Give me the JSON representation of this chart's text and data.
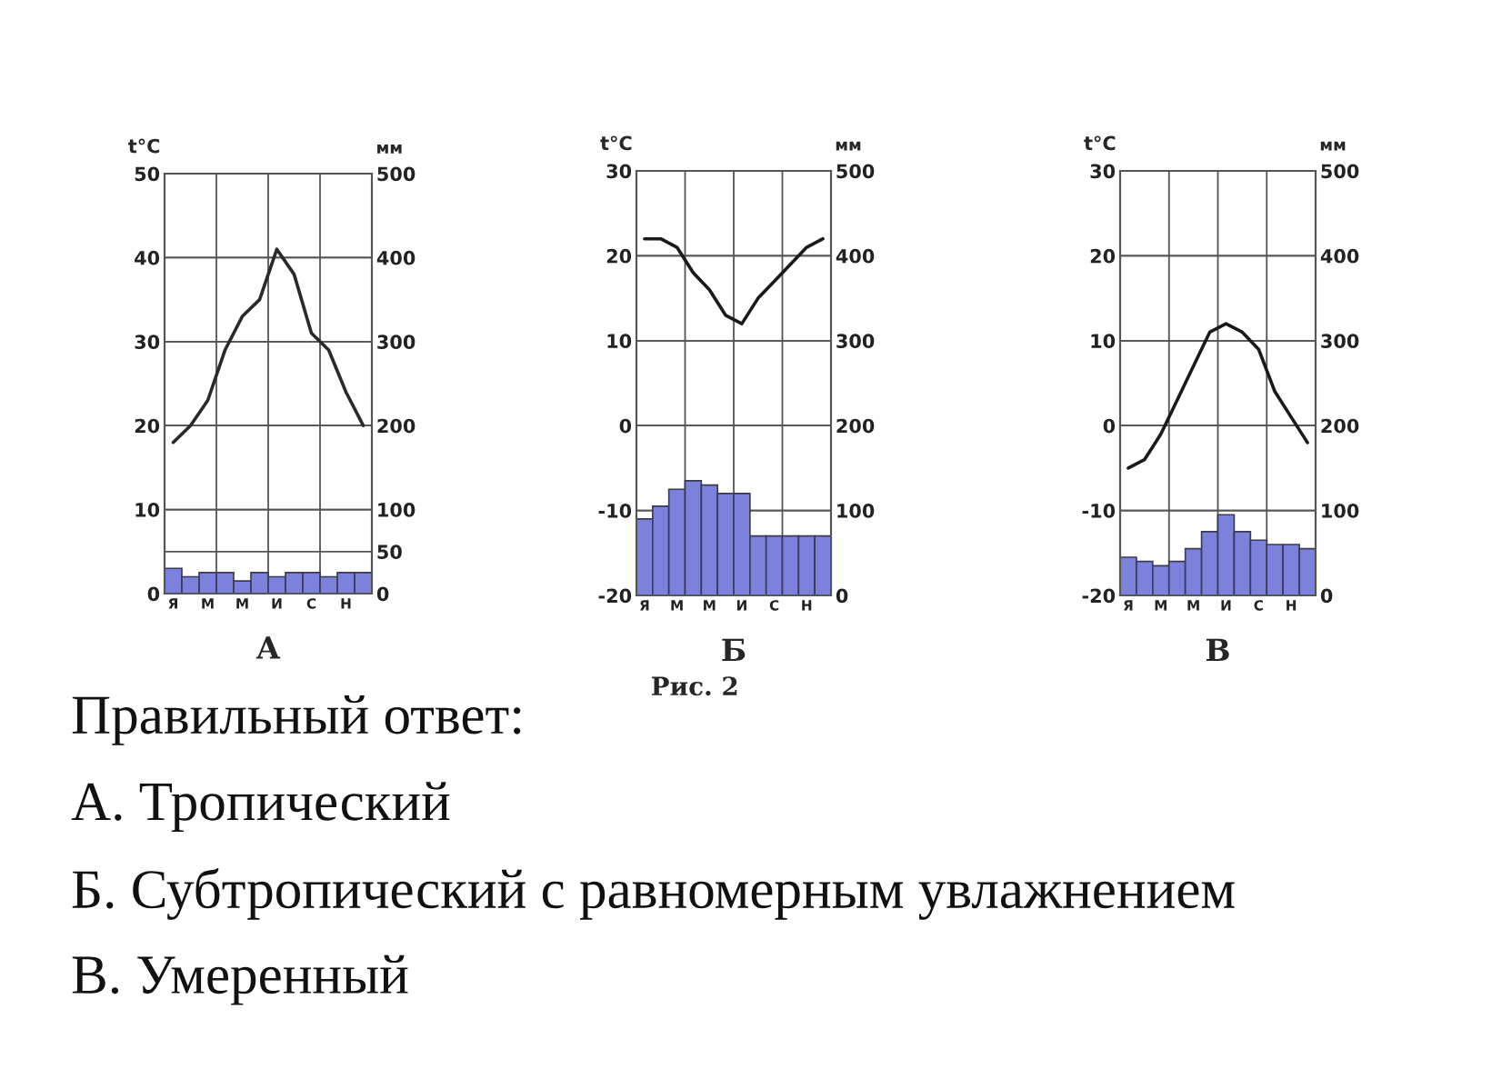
{
  "chart_data": [
    {
      "type": "bar",
      "xlabel": "А",
      "ylabel": "t°C",
      "y2label": "мм",
      "categories": [
        "Я",
        null,
        "М",
        null,
        "М",
        null,
        "И",
        null,
        "С",
        null,
        "Н",
        null
      ],
      "ylim": [
        0,
        50
      ],
      "yticks": [
        0,
        10,
        20,
        30,
        40,
        50
      ],
      "y2lim": [
        0,
        500
      ],
      "y2ticks": [
        0,
        50,
        100,
        200,
        300,
        400,
        500
      ],
      "grid": true,
      "series": [
        {
          "type": "bar",
          "axis": "y2",
          "color": "#7c82dc",
          "values": [
            30,
            20,
            25,
            25,
            15,
            25,
            20,
            25,
            25,
            20,
            25,
            25
          ]
        },
        {
          "type": "line",
          "axis": "y",
          "color": "#2a2a2a",
          "values": [
            18,
            20,
            23,
            29,
            33,
            35,
            41,
            38,
            31,
            29,
            24,
            20
          ]
        }
      ]
    },
    {
      "type": "bar",
      "xlabel": "Б",
      "ylabel": "t°C",
      "y2label": "мм",
      "annotations": [
        "Рис. 2"
      ],
      "categories": [
        "Я",
        null,
        "М",
        null,
        "М",
        null,
        "И",
        null,
        "С",
        null,
        "Н",
        null
      ],
      "ylim": [
        -20,
        30
      ],
      "yticks": [
        -20,
        -10,
        0,
        10,
        20,
        30
      ],
      "y2lim": [
        0,
        500
      ],
      "y2ticks": [
        0,
        100,
        200,
        300,
        400,
        500
      ],
      "grid": true,
      "series": [
        {
          "type": "bar",
          "axis": "y2",
          "color": "#7c82dc",
          "values": [
            90,
            105,
            125,
            135,
            130,
            120,
            120,
            70,
            70,
            70,
            70,
            70
          ]
        },
        {
          "type": "line",
          "axis": "y",
          "color": "#1a1a1a",
          "values": [
            22,
            22,
            21,
            18,
            16,
            13,
            12,
            15,
            17,
            19,
            21,
            22
          ]
        }
      ]
    },
    {
      "type": "bar",
      "xlabel": "В",
      "ylabel": "t°C",
      "y2label": "мм",
      "categories": [
        "Я",
        null,
        "М",
        null,
        "М",
        null,
        "И",
        null,
        "С",
        null,
        "Н",
        null
      ],
      "ylim": [
        -20,
        30
      ],
      "yticks": [
        -20,
        -10,
        0,
        10,
        20,
        30
      ],
      "y2lim": [
        0,
        500
      ],
      "y2ticks": [
        0,
        100,
        200,
        300,
        400,
        500
      ],
      "grid": true,
      "series": [
        {
          "type": "bar",
          "axis": "y2",
          "color": "#7c82dc",
          "values": [
            45,
            40,
            35,
            40,
            55,
            75,
            95,
            75,
            65,
            60,
            60,
            55
          ]
        },
        {
          "type": "line",
          "axis": "y",
          "color": "#1a1a1a",
          "values": [
            -5,
            -4,
            -1,
            3,
            7,
            11,
            12,
            11,
            9,
            4,
            1,
            -2
          ]
        }
      ]
    },
    {
      "type": "other",
      "title": "Правильный ответ:",
      "annotations": [
        "А. Тропический",
        "Б. Субтропический с равномерным увлажнением",
        "В. Умеренный"
      ]
    }
  ]
}
